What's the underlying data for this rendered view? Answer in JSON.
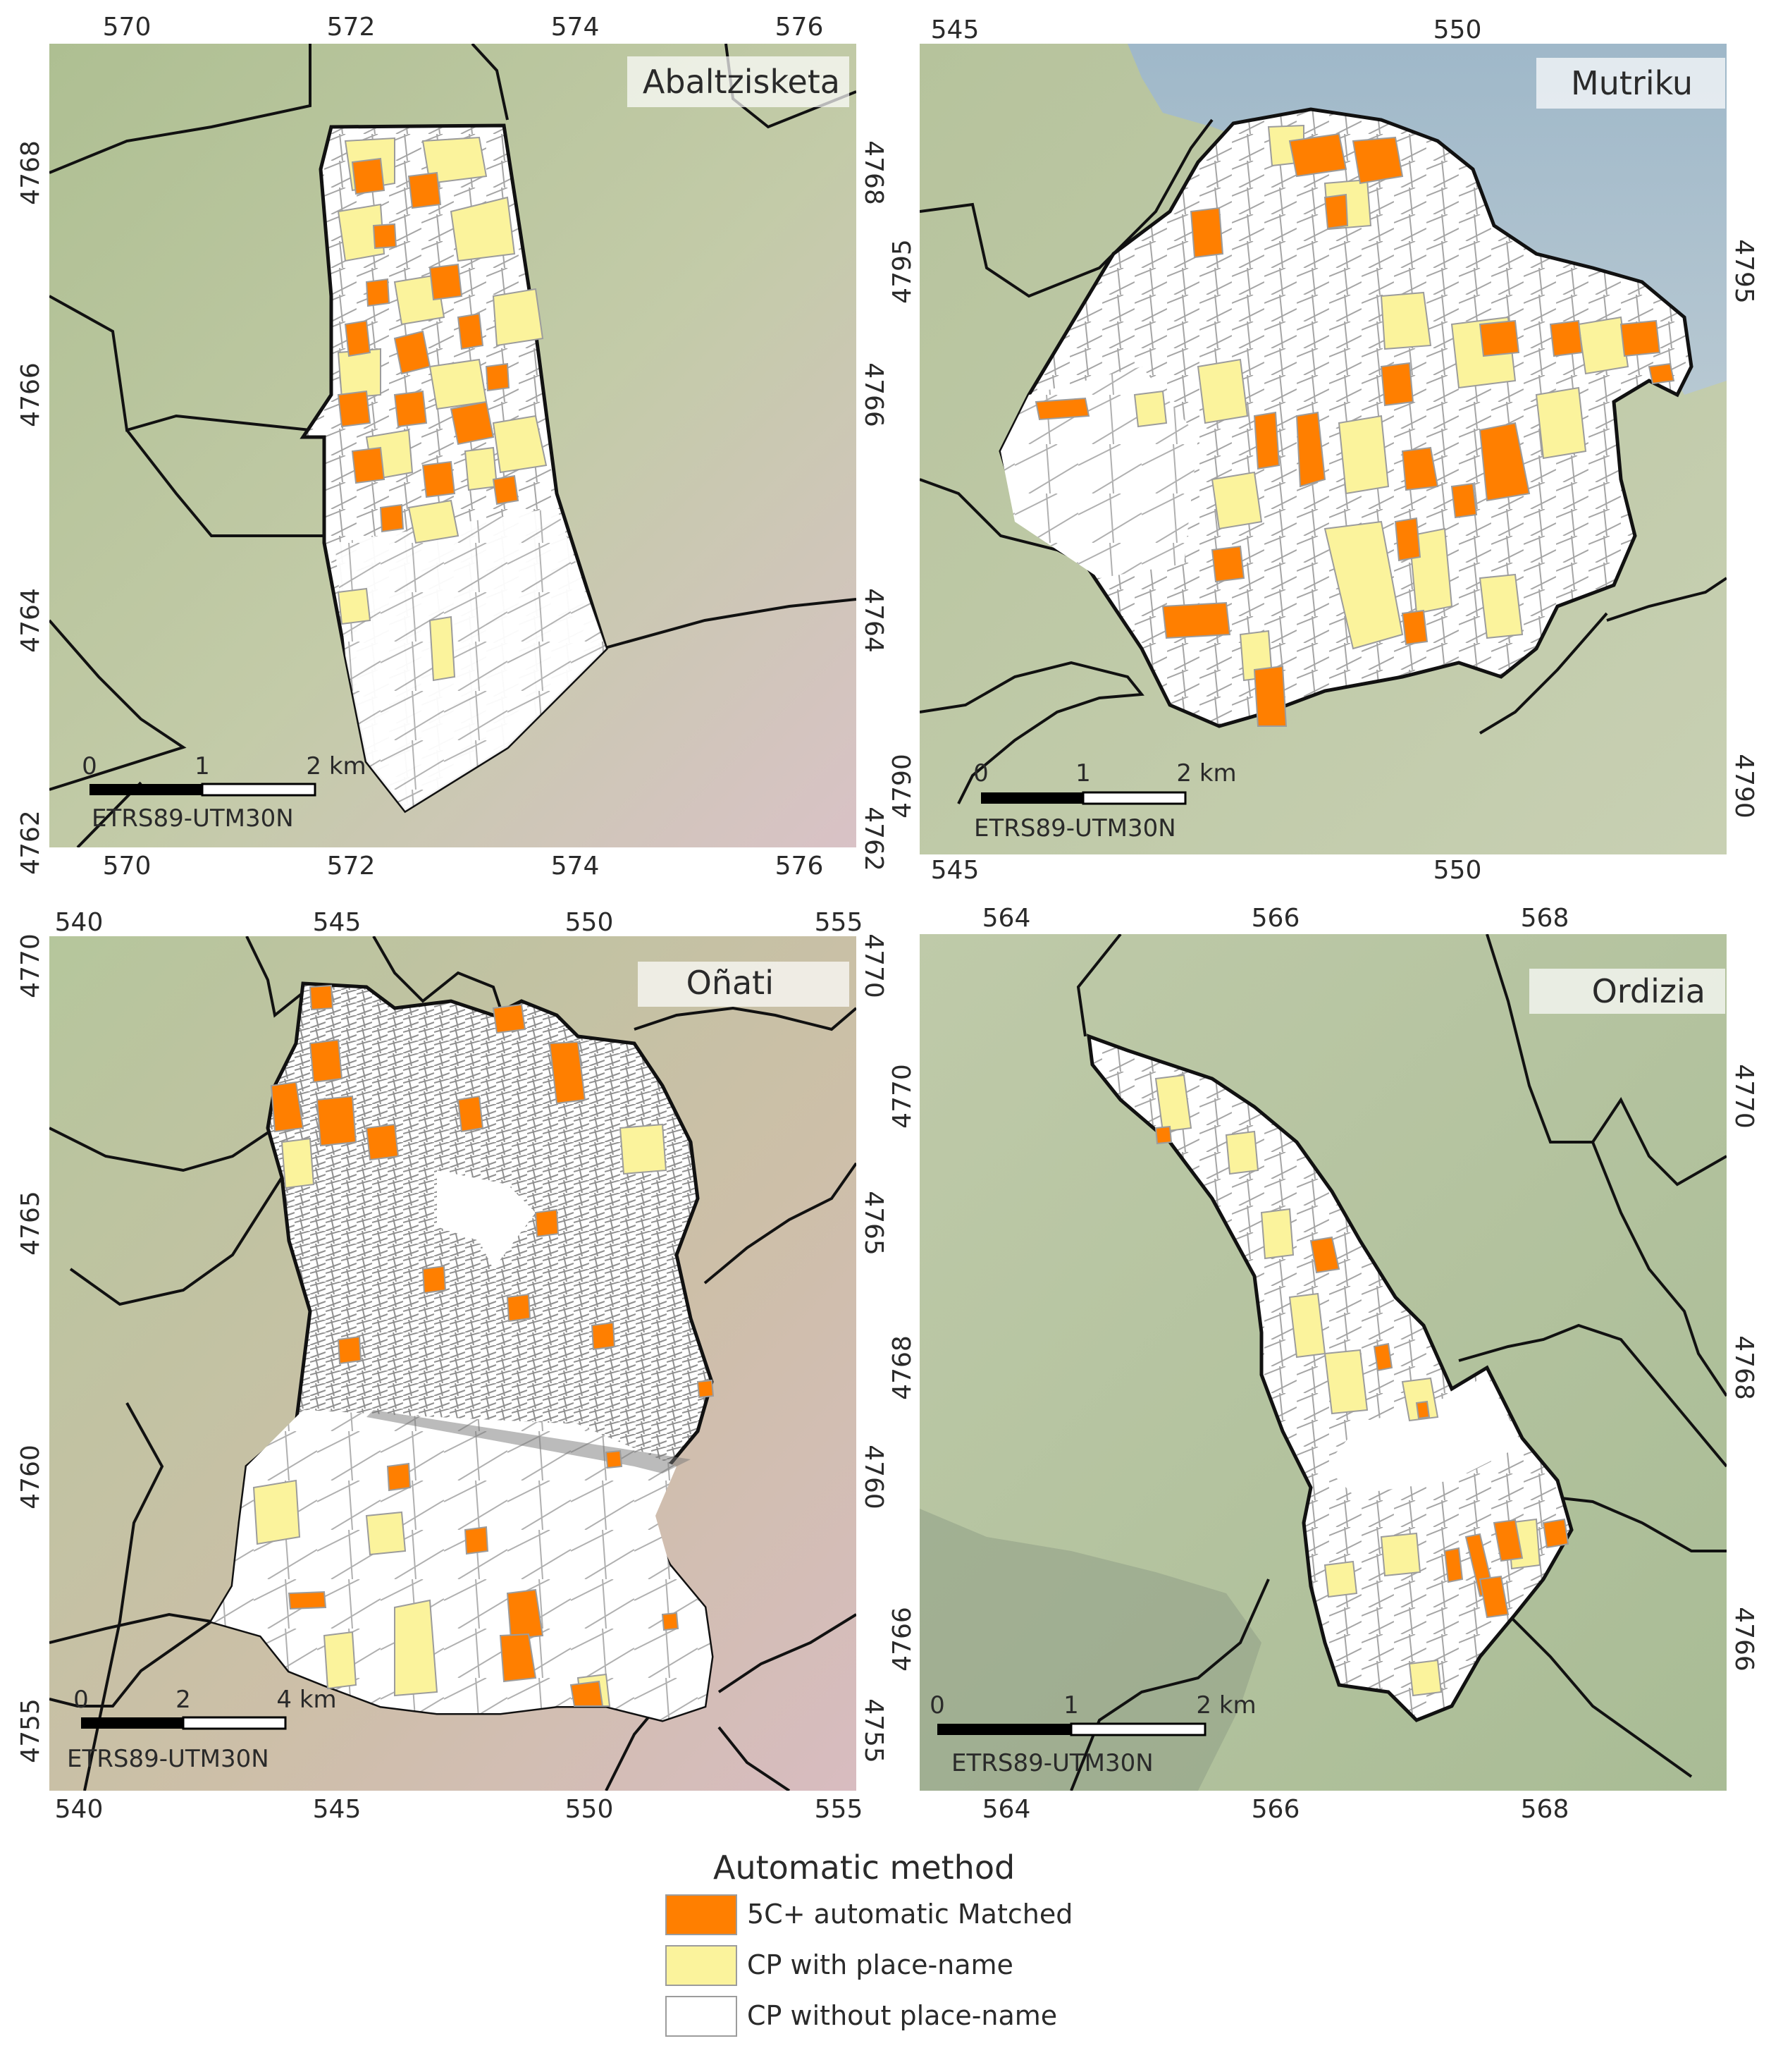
{
  "panels": [
    {
      "name": "Abaltzisketa",
      "x_ticks": [
        "570",
        "572",
        "574",
        "576"
      ],
      "y_ticks": [
        "4768",
        "4766",
        "4764",
        "4762"
      ],
      "scale_labels": [
        "0",
        "1",
        "2 km"
      ],
      "crs": "ETRS89-UTM30N"
    },
    {
      "name": "Mutriku",
      "x_ticks": [
        "545",
        "550"
      ],
      "y_ticks": [
        "4795",
        "4790"
      ],
      "scale_labels": [
        "0",
        "1",
        "2 km"
      ],
      "crs": "ETRS89-UTM30N"
    },
    {
      "name": "Oñati",
      "x_ticks": [
        "540",
        "545",
        "550",
        "555"
      ],
      "y_ticks": [
        "4770",
        "4765",
        "4760",
        "4755"
      ],
      "scale_labels": [
        "0",
        "2",
        "4 km"
      ],
      "crs": "ETRS89-UTM30N"
    },
    {
      "name": "Ordizia",
      "x_ticks": [
        "564",
        "566",
        "568"
      ],
      "y_ticks": [
        "4770",
        "4768",
        "4766"
      ],
      "scale_labels": [
        "0",
        "1",
        "2 km"
      ],
      "crs": "ETRS89-UTM30N"
    }
  ],
  "legend": {
    "title": "Automatic method",
    "items": [
      {
        "label": "5C+ automatic Matched",
        "color": "#ff7f00"
      },
      {
        "label": "CP with place-name",
        "color": "#fbf39c"
      },
      {
        "label": "CP without place-name",
        "color": "#ffffff"
      }
    ]
  },
  "colors": {
    "terrain_green": "#b9c9a0",
    "terrain_pink": "#d8bfc2",
    "sea": "#a6bdcc",
    "boundary": "#111111",
    "parcel_edge": "#9c9c9c"
  }
}
